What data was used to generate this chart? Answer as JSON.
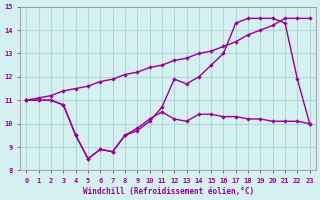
{
  "xlabel": "Windchill (Refroidissement éolien,°C)",
  "bg_color": "#d4f0f0",
  "grid_color": "#b0d8d8",
  "line_color": "#990099",
  "xlim": [
    -0.5,
    23.5
  ],
  "ylim": [
    8,
    15
  ],
  "yticks": [
    8,
    9,
    10,
    11,
    12,
    13,
    14,
    15
  ],
  "xticks": [
    0,
    1,
    2,
    3,
    4,
    5,
    6,
    7,
    8,
    9,
    10,
    11,
    12,
    13,
    14,
    15,
    16,
    17,
    18,
    19,
    20,
    21,
    22,
    23
  ],
  "line1_x": [
    0,
    1,
    2,
    3,
    4,
    5,
    6,
    7,
    8,
    9,
    10,
    11,
    12,
    13,
    14,
    15,
    16,
    17,
    18,
    19,
    20,
    21,
    22,
    23
  ],
  "line1_y": [
    11.0,
    11.1,
    11.2,
    11.4,
    11.5,
    11.6,
    11.8,
    11.9,
    12.1,
    12.2,
    12.4,
    12.5,
    12.7,
    12.8,
    13.0,
    13.1,
    13.3,
    13.5,
    13.8,
    14.0,
    14.2,
    14.5,
    14.5,
    14.5
  ],
  "line2_x": [
    0,
    1,
    2,
    3,
    4,
    5,
    6,
    7,
    8,
    9,
    10,
    11,
    12,
    13,
    14,
    15,
    16,
    17,
    18,
    19,
    20,
    21,
    22,
    23
  ],
  "line2_y": [
    11.0,
    11.0,
    11.0,
    10.8,
    9.5,
    8.5,
    8.9,
    8.8,
    9.5,
    9.8,
    10.2,
    10.5,
    10.2,
    10.1,
    10.4,
    10.4,
    10.3,
    10.3,
    10.2,
    10.2,
    10.1,
    10.1,
    10.1,
    10.0
  ],
  "line3_x": [
    0,
    1,
    2,
    3,
    4,
    5,
    6,
    7,
    8,
    9,
    10,
    11,
    12,
    13,
    14,
    15,
    16,
    17,
    18,
    19,
    20,
    21,
    22,
    23
  ],
  "line3_y": [
    11.0,
    11.0,
    11.0,
    10.8,
    9.5,
    8.5,
    8.9,
    8.8,
    9.5,
    9.7,
    10.1,
    10.7,
    11.9,
    11.7,
    12.0,
    12.5,
    13.0,
    14.3,
    14.5,
    14.5,
    14.5,
    14.3,
    11.9,
    10.0
  ]
}
